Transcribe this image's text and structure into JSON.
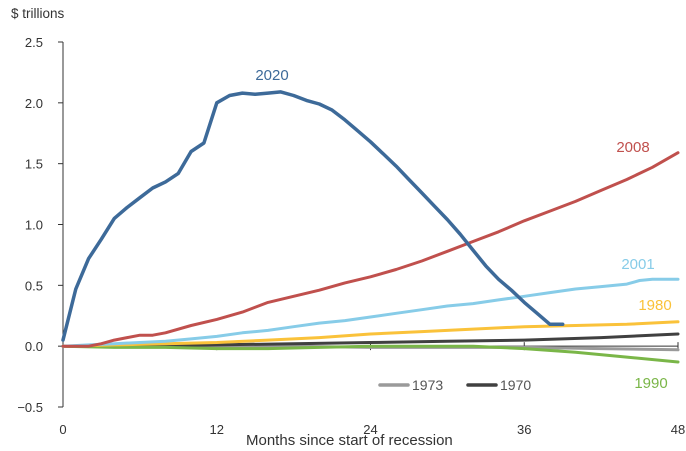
{
  "chart_data": {
    "type": "line",
    "y_unit_label": "$ trillions",
    "xlabel": "Months since start of recession",
    "xlim": [
      0,
      48
    ],
    "ylim": [
      -0.5,
      2.5
    ],
    "x_ticks": [
      0,
      12,
      24,
      36,
      48
    ],
    "y_ticks": [
      -0.5,
      0.0,
      0.5,
      1.0,
      1.5,
      2.0,
      2.5
    ],
    "y_tick_labels": [
      "−0.5",
      "0.0",
      "0.5",
      "1.0",
      "1.5",
      "2.0",
      "2.5"
    ],
    "legend": {
      "placement": "bottom-right",
      "entries": [
        "1973",
        "1970"
      ]
    },
    "series": [
      {
        "name": "2020",
        "color": "#3d6a99",
        "label_where": "on-line",
        "x": [
          0,
          1,
          2,
          3,
          4,
          5,
          6,
          7,
          8,
          9,
          10,
          11,
          12,
          13,
          14,
          15,
          16,
          17,
          18,
          19,
          20,
          21,
          22,
          23,
          24,
          25,
          26,
          27,
          28,
          29,
          30,
          31,
          32,
          33,
          34,
          35,
          36,
          37,
          38,
          39
        ],
        "y": [
          0.05,
          0.47,
          0.72,
          0.88,
          1.05,
          1.14,
          1.22,
          1.3,
          1.35,
          1.42,
          1.6,
          1.67,
          2.0,
          2.06,
          2.08,
          2.07,
          2.08,
          2.09,
          2.06,
          2.02,
          1.99,
          1.94,
          1.86,
          1.77,
          1.68,
          1.58,
          1.48,
          1.37,
          1.26,
          1.15,
          1.04,
          0.92,
          0.79,
          0.66,
          0.55,
          0.46,
          0.36,
          0.27,
          0.18,
          0.18
        ]
      },
      {
        "name": "2008",
        "color": "#c0504d",
        "label_where": "on-line",
        "x": [
          0,
          2,
          3,
          4,
          5,
          6,
          7,
          8,
          10,
          12,
          14,
          16,
          18,
          20,
          22,
          24,
          26,
          28,
          30,
          32,
          34,
          36,
          38,
          40,
          42,
          44,
          46,
          48
        ],
        "y": [
          0.0,
          0.0,
          0.02,
          0.05,
          0.07,
          0.09,
          0.09,
          0.11,
          0.17,
          0.22,
          0.28,
          0.36,
          0.41,
          0.46,
          0.52,
          0.57,
          0.63,
          0.7,
          0.78,
          0.86,
          0.94,
          1.03,
          1.11,
          1.19,
          1.28,
          1.37,
          1.47,
          1.59
        ]
      },
      {
        "name": "2001",
        "color": "#87cce8",
        "label_where": "on-line",
        "x": [
          0,
          2,
          4,
          6,
          8,
          10,
          12,
          14,
          16,
          18,
          20,
          22,
          24,
          26,
          28,
          30,
          32,
          34,
          36,
          38,
          40,
          42,
          44,
          45,
          46,
          48
        ],
        "y": [
          0.0,
          0.01,
          0.02,
          0.03,
          0.04,
          0.06,
          0.08,
          0.11,
          0.13,
          0.16,
          0.19,
          0.21,
          0.24,
          0.27,
          0.3,
          0.33,
          0.35,
          0.38,
          0.41,
          0.44,
          0.47,
          0.49,
          0.51,
          0.54,
          0.55,
          0.55
        ]
      },
      {
        "name": "1980",
        "color": "#fac23a",
        "label_where": "on-line",
        "x": [
          0,
          4,
          8,
          12,
          16,
          20,
          24,
          28,
          32,
          36,
          40,
          44,
          48
        ],
        "y": [
          0.0,
          0.01,
          0.02,
          0.03,
          0.05,
          0.07,
          0.1,
          0.12,
          0.14,
          0.16,
          0.17,
          0.18,
          0.2
        ]
      },
      {
        "name": "1970",
        "color": "#404040",
        "label_where": "legend",
        "x": [
          0,
          6,
          12,
          18,
          24,
          30,
          36,
          42,
          48
        ],
        "y": [
          0.0,
          0.0,
          0.01,
          0.02,
          0.03,
          0.04,
          0.05,
          0.07,
          0.1
        ]
      },
      {
        "name": "1973",
        "color": "#9a9a9a",
        "label_where": "legend",
        "x": [
          0,
          6,
          12,
          18,
          24,
          30,
          36,
          42,
          48
        ],
        "y": [
          0.0,
          0.0,
          0.0,
          0.0,
          -0.01,
          -0.01,
          -0.01,
          -0.02,
          -0.03
        ]
      },
      {
        "name": "1990",
        "color": "#7ab648",
        "label_where": "on-line",
        "x": [
          0,
          4,
          8,
          12,
          16,
          20,
          24,
          28,
          32,
          36,
          40,
          44,
          48
        ],
        "y": [
          0.0,
          -0.01,
          -0.01,
          -0.02,
          -0.02,
          -0.01,
          0.0,
          0.0,
          0.0,
          -0.02,
          -0.05,
          -0.09,
          -0.13
        ]
      }
    ]
  }
}
